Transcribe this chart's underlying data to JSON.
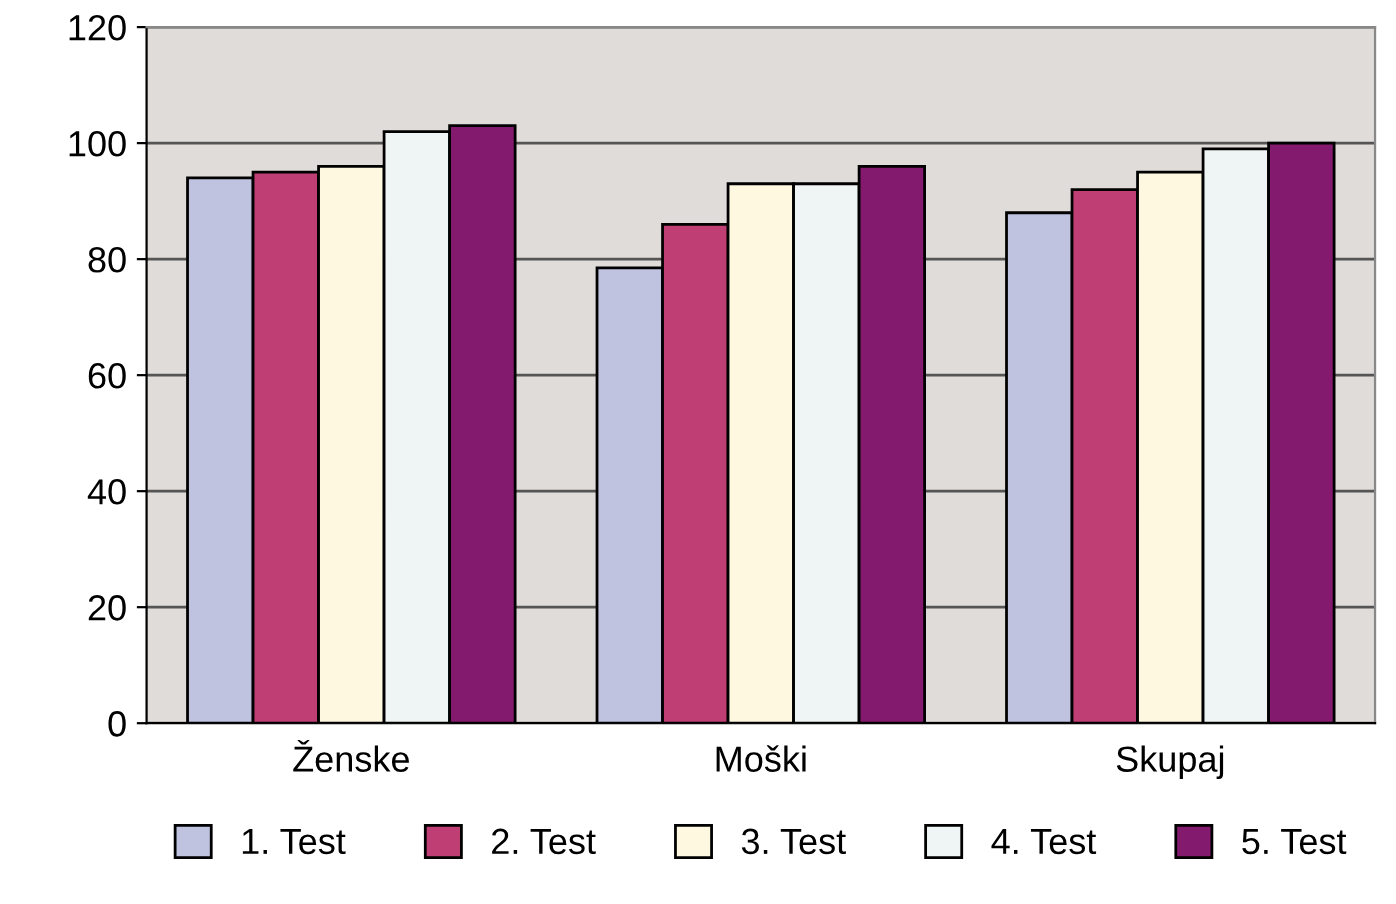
{
  "chart_data": {
    "type": "bar",
    "categories": [
      "Ženske",
      "Moški",
      "Skupaj"
    ],
    "series": [
      {
        "name": "1. Test",
        "color": "#bfc3e0",
        "values": [
          94,
          78.5,
          88
        ]
      },
      {
        "name": "2. Test",
        "color": "#bf3f74",
        "values": [
          95,
          86,
          92
        ]
      },
      {
        "name": "3. Test",
        "color": "#fff8e0",
        "values": [
          96,
          93,
          95
        ]
      },
      {
        "name": "4. Test",
        "color": "#eff5f5",
        "values": [
          102,
          93,
          99
        ]
      },
      {
        "name": "5. Test",
        "color": "#841a6e",
        "values": [
          103,
          96,
          100
        ]
      }
    ],
    "ylim": [
      0,
      120
    ],
    "yticks": [
      0,
      20,
      40,
      60,
      80,
      100,
      120
    ],
    "grid": "y",
    "legend": "bottom"
  }
}
